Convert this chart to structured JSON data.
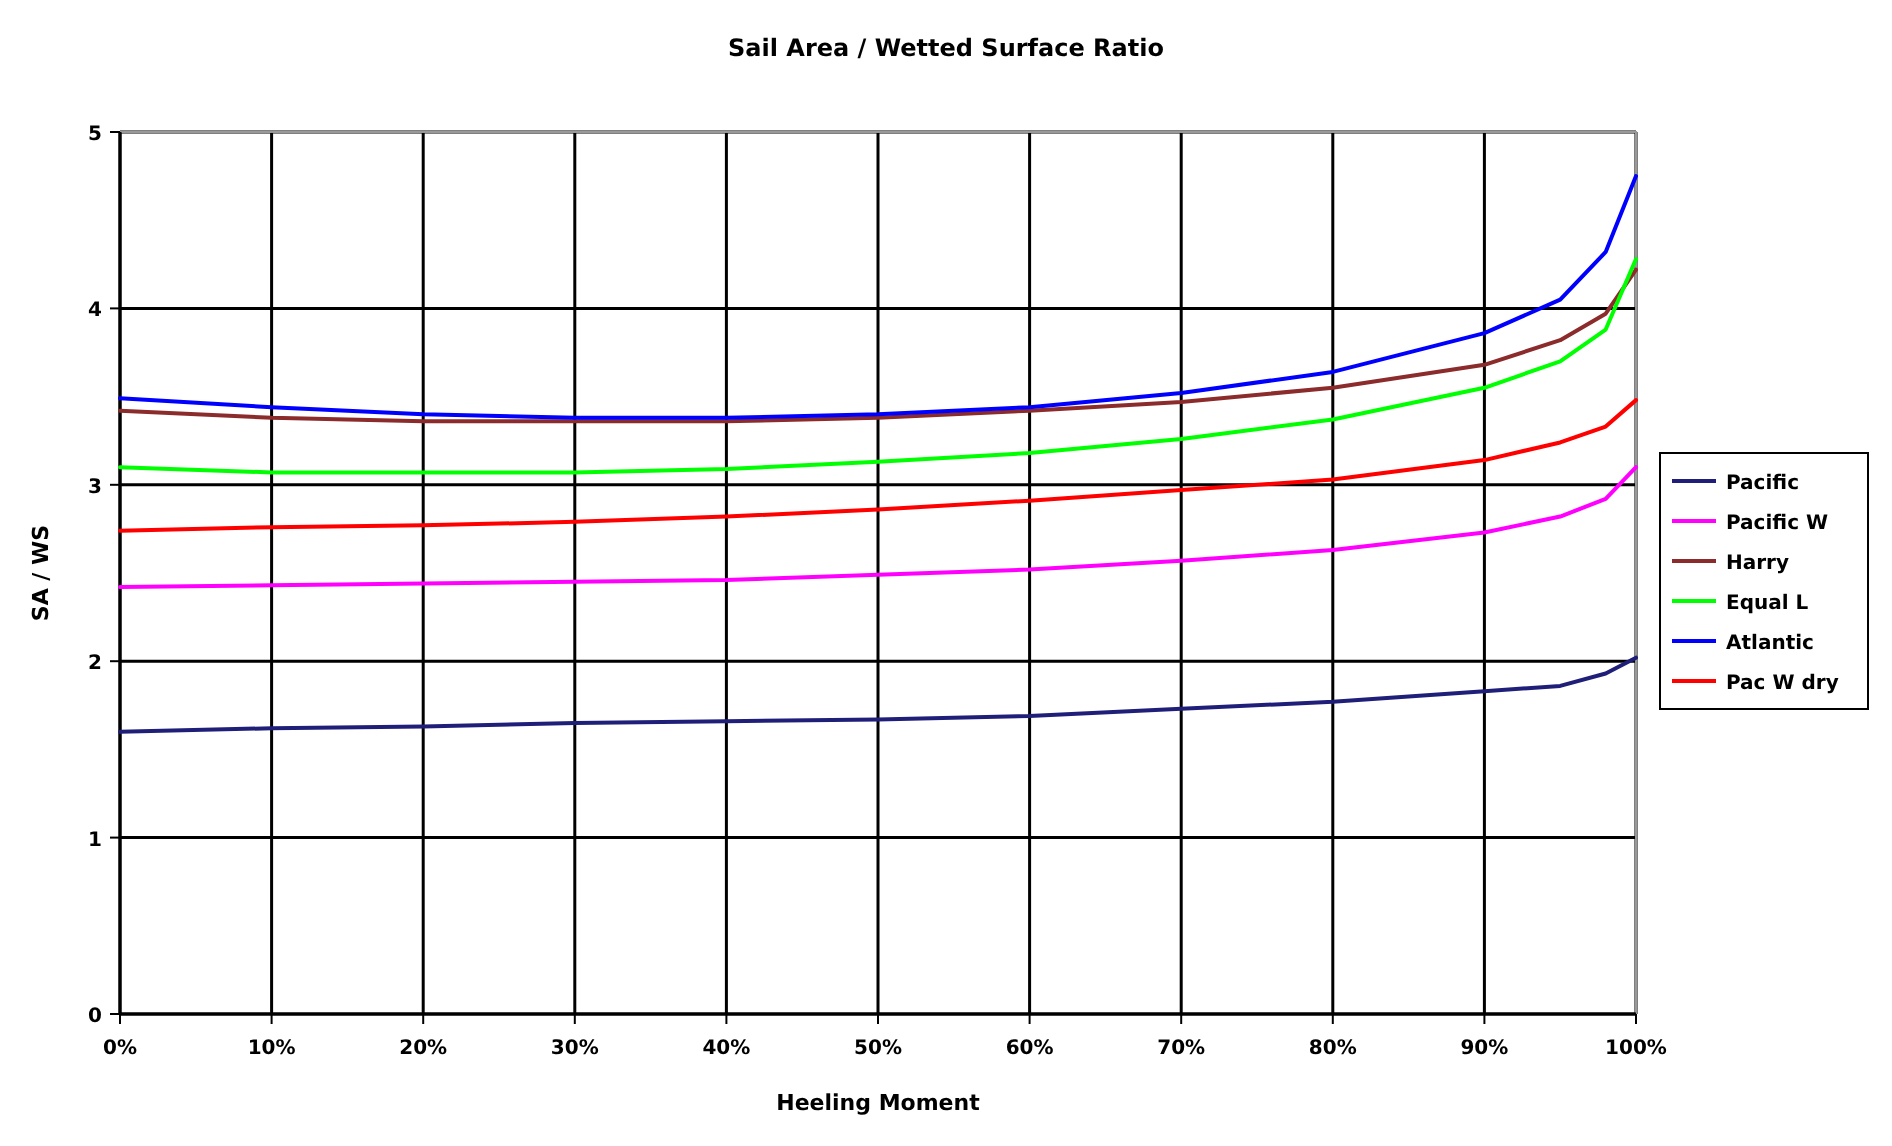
{
  "chart_data": {
    "type": "line",
    "title": "Sail Area / Wetted Surface Ratio",
    "xlabel": "Heeling Moment",
    "ylabel": "SA / WS",
    "x": [
      0,
      10,
      20,
      30,
      40,
      50,
      60,
      70,
      80,
      90,
      95,
      98,
      100
    ],
    "xlim": [
      0,
      100
    ],
    "xticks": [
      {
        "value": 0,
        "label": "0%"
      },
      {
        "value": 10,
        "label": "10%"
      },
      {
        "value": 20,
        "label": "20%"
      },
      {
        "value": 30,
        "label": "30%"
      },
      {
        "value": 40,
        "label": "40%"
      },
      {
        "value": 50,
        "label": "50%"
      },
      {
        "value": 60,
        "label": "60%"
      },
      {
        "value": 70,
        "label": "70%"
      },
      {
        "value": 80,
        "label": "80%"
      },
      {
        "value": 90,
        "label": "90%"
      },
      {
        "value": 100,
        "label": "100%"
      }
    ],
    "ylim": [
      0,
      5
    ],
    "yticks": [
      0,
      1,
      2,
      3,
      4,
      5
    ],
    "grid": true,
    "legend": "right",
    "line_style": "solid",
    "series": [
      {
        "name": "Pacific",
        "color": "#1f1f7a",
        "values": [
          1.6,
          1.62,
          1.63,
          1.65,
          1.66,
          1.67,
          1.69,
          1.73,
          1.77,
          1.83,
          1.86,
          1.93,
          2.02
        ]
      },
      {
        "name": "Pacific W",
        "color": "#ff00ff",
        "values": [
          2.42,
          2.43,
          2.44,
          2.45,
          2.46,
          2.49,
          2.52,
          2.57,
          2.63,
          2.73,
          2.82,
          2.92,
          3.1
        ]
      },
      {
        "name": "Harry",
        "color": "#8b2b2b",
        "values": [
          3.42,
          3.38,
          3.36,
          3.36,
          3.36,
          3.38,
          3.42,
          3.47,
          3.55,
          3.68,
          3.82,
          3.97,
          4.22
        ]
      },
      {
        "name": "Equal L",
        "color": "#00ff00",
        "values": [
          3.1,
          3.07,
          3.07,
          3.07,
          3.09,
          3.13,
          3.18,
          3.26,
          3.37,
          3.55,
          3.7,
          3.88,
          4.28
        ]
      },
      {
        "name": "Atlantic",
        "color": "#0000ff",
        "values": [
          3.49,
          3.44,
          3.4,
          3.38,
          3.38,
          3.4,
          3.44,
          3.52,
          3.64,
          3.86,
          4.05,
          4.32,
          4.75
        ]
      },
      {
        "name": "Pac W dry",
        "color": "#ff0000",
        "values": [
          2.74,
          2.76,
          2.77,
          2.79,
          2.82,
          2.86,
          2.91,
          2.97,
          3.03,
          3.14,
          3.24,
          3.33,
          3.48
        ]
      }
    ]
  }
}
